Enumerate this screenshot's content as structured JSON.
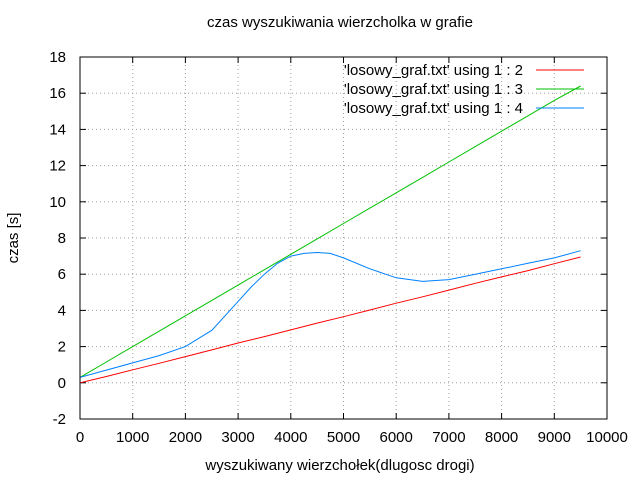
{
  "chart_data": {
    "type": "line",
    "title": "czas wyszukiwania wierzcholka w grafie",
    "xlabel": "wyszukiwany wierzchołek(dlugosc drogi)",
    "ylabel": "czas [s]",
    "xlim": [
      0,
      10000
    ],
    "ylim": [
      -2,
      18
    ],
    "xticks": [
      0,
      1000,
      2000,
      3000,
      4000,
      5000,
      6000,
      7000,
      8000,
      9000,
      10000
    ],
    "yticks": [
      -2,
      0,
      2,
      4,
      6,
      8,
      10,
      12,
      14,
      16,
      18
    ],
    "grid": true,
    "legend_position": "top-right",
    "series": [
      {
        "name": "'losowy_graf.txt' using 1 : 2",
        "color": "#ff0000",
        "x": [
          0,
          500,
          1000,
          1500,
          2000,
          2500,
          3000,
          3500,
          4000,
          4500,
          5000,
          5500,
          6000,
          6500,
          7000,
          7500,
          8000,
          8500,
          9000,
          9500
        ],
        "y": [
          0.0,
          0.35,
          0.72,
          1.08,
          1.45,
          1.82,
          2.2,
          2.55,
          2.92,
          3.3,
          3.65,
          4.02,
          4.4,
          4.75,
          5.12,
          5.5,
          5.85,
          6.2,
          6.58,
          6.95
        ]
      },
      {
        "name": "'losowy_graf.txt' using 1 : 3",
        "color": "#00c000",
        "x": [
          0,
          500,
          1000,
          1500,
          2000,
          2500,
          3000,
          3500,
          4000,
          4500,
          5000,
          5500,
          6000,
          6500,
          7000,
          7500,
          8000,
          8500,
          9000,
          9500
        ],
        "y": [
          0.3,
          1.15,
          2.0,
          2.85,
          3.7,
          4.55,
          5.4,
          6.25,
          7.1,
          7.95,
          8.8,
          9.65,
          10.5,
          11.35,
          12.2,
          13.05,
          13.9,
          14.75,
          15.6,
          16.4
        ]
      },
      {
        "name": "'losowy_graf.txt' using 1 : 4",
        "color": "#0080ff",
        "x": [
          0,
          500,
          1000,
          1500,
          2000,
          2500,
          3000,
          3250,
          3500,
          3750,
          4000,
          4250,
          4500,
          4750,
          5000,
          5500,
          6000,
          6500,
          7000,
          7500,
          8000,
          8500,
          9000,
          9500
        ],
        "y": [
          0.3,
          0.7,
          1.1,
          1.5,
          2.0,
          2.9,
          4.5,
          5.3,
          6.0,
          6.6,
          7.0,
          7.15,
          7.2,
          7.15,
          6.9,
          6.3,
          5.8,
          5.6,
          5.7,
          6.0,
          6.3,
          6.6,
          6.9,
          7.3
        ]
      }
    ]
  }
}
